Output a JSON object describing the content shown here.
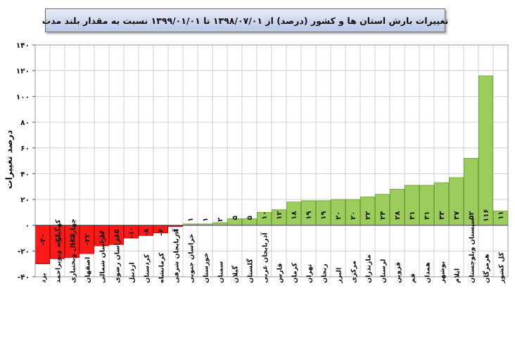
{
  "chart_data": {
    "type": "bar",
    "title": "تغییرات بارش استان ها و کشور (درصد) از ۱۳۹۸/۰۷/۰۱ تا ۱۳۹۹/۰۱/۰۱ نسبت به مقدار بلند مدت",
    "xlabel": "",
    "ylabel": "درصد تغییرات",
    "ylim": [
      -40,
      140
    ],
    "yticks": [
      -40,
      -20,
      0,
      20,
      40,
      60,
      80,
      100,
      120,
      140
    ],
    "ytick_labels": [
      "-۴۰",
      "-۲۰",
      "۰",
      "۲۰",
      "۴۰",
      "۶۰",
      "۸۰",
      "۱۰۰",
      "۱۲۰",
      "۱۴۰"
    ],
    "grid": true,
    "legend": "none",
    "categories": [
      "یزد",
      "کهگیلویه وبویراحمد",
      "چهارمحال وبختیاری",
      "اصفهان",
      "خراسان شمالی",
      "خراسان رضوی",
      "اردبیل",
      "کردستان",
      "کرمانشاه",
      "آذربایجان شرقی",
      "خراسان جنوبی",
      "خوزستان",
      "سمنان",
      "گیلان",
      "گلستان",
      "آذربایجان غربی",
      "فارس",
      "کرمان",
      "تهران",
      "زنجان",
      "البرز",
      "مرکزی",
      "مازندران",
      "لرستان",
      "قزوین",
      "قم",
      "همدان",
      "بوشهر",
      "ایلام",
      "سیستان وبلوچستان",
      "هرمزگان",
      "کل کشور"
    ],
    "values": [
      -30,
      -26,
      -25,
      -22,
      -16,
      -15,
      -10,
      -8,
      -6,
      -1,
      1,
      1,
      2,
      5,
      5,
      10,
      12,
      18,
      19,
      19,
      20,
      20,
      22,
      24,
      28,
      31,
      31,
      33,
      37,
      52,
      116,
      11
    ],
    "value_labels": [
      "-۳۰",
      "-۲۶",
      "-۲۵",
      "-۲۲",
      "-۱۶",
      "-۱۵",
      "-۱۰",
      "-۸",
      "-۶",
      "-۱",
      "۱",
      "۱",
      "۲",
      "۵",
      "۵",
      "۱۰",
      "۱۲",
      "۱۸",
      "۱۹",
      "۱۹",
      "۲۰",
      "۲۰",
      "۲۲",
      "۲۴",
      "۲۸",
      "۳۱",
      "۳۱",
      "۳۳",
      "۳۷",
      "۵۲",
      "۱۱۶",
      "۱۱"
    ],
    "colors": {
      "negative": "#ff1a1a",
      "positive": "#9bcc5c",
      "positive_edge": "#6f9a36",
      "negative_edge": "#a80000",
      "total": "#9bcc5c"
    }
  }
}
